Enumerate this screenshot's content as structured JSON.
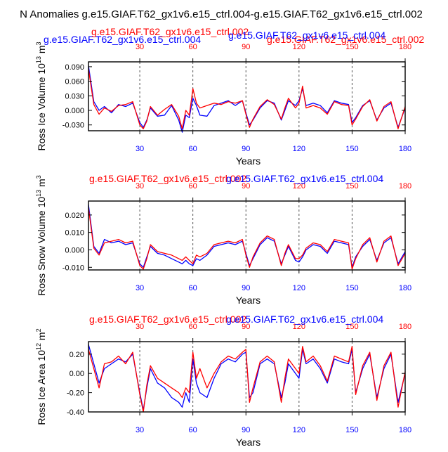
{
  "page_title": "N Anomalies g.e15.GIAF.T62_gx1v6.e15_ctrl.004-g.e15.GIAF.T62_gx1v6.e15_ctrl.002",
  "colors": {
    "blue": "#0000ff",
    "red": "#ff0000",
    "axis": "#000000",
    "grid": "#555555"
  },
  "chart_data": [
    {
      "type": "line",
      "ylabel_main": "Ross Ice Volume 10",
      "ylabel_exp": "13",
      "ylabel_unit": " m",
      "ylabel_unit_exp": "3",
      "xlabel": "Years",
      "legend_left": "g.e15.GIAF.T62_gx1v6.e15_ctrl.004",
      "legend_top": "g.e15.GIAF.T62_gx1v6.e15_ctrl.002",
      "legend_right": "g.e15.GIAF.T62_gx1v6.e15_ctrl.002",
      "xlim": [
        1,
        180
      ],
      "ylim": [
        -0.042,
        0.1
      ],
      "yticks": [
        -0.03,
        0,
        0.03,
        0.06,
        0.09
      ],
      "yticklabels": [
        "-0.030",
        "0.000",
        "0.030",
        "0.060",
        "0.090"
      ],
      "xticks": [
        30,
        60,
        90,
        120,
        150,
        180
      ],
      "xticklabels": [
        "30",
        "60",
        "90",
        "120",
        "150",
        "180"
      ],
      "series": [
        {
          "name": "g.e15.GIAF.T62_gx1v6.e15_ctrl.004",
          "color": "#0000ff",
          "x": [
            1,
            4,
            7,
            10,
            14,
            18,
            22,
            26,
            30,
            32,
            34,
            36,
            40,
            44,
            48,
            52,
            54,
            56,
            58,
            60,
            62,
            64,
            68,
            72,
            76,
            80,
            84,
            88,
            90,
            92,
            94,
            98,
            102,
            106,
            110,
            112,
            114,
            118,
            120,
            122,
            124,
            128,
            132,
            136,
            140,
            144,
            148,
            150,
            152,
            156,
            160,
            164,
            168,
            172,
            176,
            180
          ],
          "values": [
            0.092,
            0.018,
            0.0,
            0.008,
            -0.005,
            0.012,
            0.008,
            0.015,
            -0.025,
            -0.035,
            -0.02,
            0.005,
            -0.012,
            -0.01,
            0.01,
            -0.02,
            -0.045,
            -0.01,
            -0.015,
            0.025,
            0.01,
            -0.01,
            -0.012,
            0.01,
            0.015,
            0.02,
            0.01,
            0.02,
            -0.005,
            -0.03,
            -0.02,
            0.005,
            0.02,
            0.015,
            -0.02,
            0.0,
            0.02,
            0.01,
            0.02,
            0.045,
            0.01,
            0.015,
            0.01,
            -0.005,
            0.02,
            0.015,
            0.012,
            -0.025,
            -0.015,
            0.01,
            0.02,
            -0.02,
            0.005,
            0.015,
            -0.035,
            0.005
          ]
        },
        {
          "name": "g.e15.GIAF.T62_gx1v6.e15_ctrl.002",
          "color": "#ff0000",
          "x": [
            1,
            4,
            7,
            10,
            14,
            18,
            22,
            26,
            30,
            32,
            34,
            36,
            40,
            44,
            48,
            52,
            54,
            56,
            58,
            60,
            62,
            64,
            68,
            72,
            76,
            80,
            84,
            88,
            90,
            92,
            94,
            98,
            102,
            106,
            110,
            112,
            114,
            118,
            120,
            122,
            124,
            128,
            132,
            136,
            140,
            144,
            148,
            150,
            152,
            156,
            160,
            164,
            168,
            172,
            176,
            180
          ],
          "values": [
            0.085,
            0.012,
            -0.008,
            0.005,
            -0.002,
            0.01,
            0.012,
            0.018,
            -0.03,
            -0.038,
            -0.022,
            0.008,
            -0.01,
            0.002,
            0.012,
            -0.012,
            -0.038,
            0.0,
            -0.01,
            0.045,
            0.015,
            0.005,
            0.01,
            0.015,
            0.012,
            0.018,
            0.015,
            0.02,
            -0.008,
            -0.035,
            -0.018,
            0.008,
            0.022,
            0.012,
            -0.018,
            0.005,
            0.025,
            0.005,
            0.015,
            0.05,
            0.005,
            0.01,
            0.005,
            -0.008,
            0.018,
            0.012,
            0.01,
            -0.03,
            -0.018,
            0.008,
            0.022,
            -0.022,
            0.008,
            0.018,
            -0.038,
            0.008
          ]
        }
      ]
    },
    {
      "type": "line",
      "ylabel_main": "Ross Snow Volume 10",
      "ylabel_exp": "13",
      "ylabel_unit": " m",
      "ylabel_unit_exp": "3",
      "xlabel": "Years",
      "legend_left": "g.e15.GIAF.T62_gx1v6.e15_ctrl.002",
      "legend_right": "g.e15.GIAF.T62_gx1v6.e15_ctrl.004",
      "xlim": [
        1,
        180
      ],
      "ylim": [
        -0.0115,
        0.028
      ],
      "yticks": [
        -0.01,
        0,
        0.01,
        0.02
      ],
      "yticklabels": [
        "-0.010",
        "0.000",
        "0.010",
        "0.020"
      ],
      "xticks": [
        30,
        60,
        90,
        120,
        150,
        180
      ],
      "xticklabels": [
        "30",
        "60",
        "90",
        "120",
        "150",
        "180"
      ],
      "series": [
        {
          "name": "g.e15.GIAF.T62_gx1v6.e15_ctrl.004",
          "color": "#0000ff",
          "x": [
            1,
            4,
            7,
            10,
            14,
            18,
            22,
            26,
            30,
            32,
            34,
            36,
            40,
            44,
            48,
            52,
            54,
            56,
            58,
            60,
            62,
            64,
            68,
            72,
            76,
            80,
            84,
            88,
            90,
            92,
            94,
            98,
            102,
            106,
            110,
            112,
            114,
            118,
            120,
            122,
            124,
            128,
            132,
            136,
            140,
            144,
            148,
            150,
            152,
            156,
            160,
            164,
            168,
            172,
            176,
            180
          ],
          "values": [
            0.026,
            0.002,
            -0.002,
            0.006,
            0.004,
            0.005,
            0.003,
            0.004,
            -0.008,
            -0.01,
            -0.004,
            0.002,
            -0.002,
            -0.003,
            -0.005,
            -0.007,
            -0.008,
            -0.006,
            -0.008,
            -0.009,
            -0.005,
            -0.006,
            -0.003,
            0.002,
            0.003,
            0.004,
            0.003,
            0.005,
            -0.002,
            -0.009,
            -0.005,
            0.003,
            0.007,
            0.005,
            -0.008,
            -0.003,
            0.002,
            -0.006,
            -0.007,
            -0.004,
            0.0,
            0.003,
            0.002,
            -0.002,
            0.005,
            0.004,
            0.003,
            -0.01,
            -0.004,
            0.002,
            0.006,
            -0.006,
            0.004,
            0.007,
            -0.008,
            -0.001
          ]
        },
        {
          "name": "g.e15.GIAF.T62_gx1v6.e15_ctrl.002",
          "color": "#ff0000",
          "x": [
            1,
            4,
            7,
            10,
            14,
            18,
            22,
            26,
            30,
            32,
            34,
            36,
            40,
            44,
            48,
            52,
            54,
            56,
            58,
            60,
            62,
            64,
            68,
            72,
            76,
            80,
            84,
            88,
            90,
            92,
            94,
            98,
            102,
            106,
            110,
            112,
            114,
            118,
            120,
            122,
            124,
            128,
            132,
            136,
            140,
            144,
            148,
            150,
            152,
            156,
            160,
            164,
            168,
            172,
            176,
            180
          ],
          "values": [
            0.024,
            0.001,
            -0.003,
            0.004,
            0.005,
            0.006,
            0.004,
            0.005,
            -0.009,
            -0.011,
            -0.005,
            0.003,
            -0.001,
            -0.002,
            -0.003,
            -0.005,
            -0.006,
            -0.004,
            -0.006,
            -0.008,
            -0.003,
            -0.004,
            -0.002,
            0.003,
            0.004,
            0.005,
            0.004,
            0.006,
            -0.003,
            -0.01,
            -0.004,
            0.004,
            0.008,
            0.006,
            -0.009,
            -0.002,
            0.003,
            -0.005,
            -0.005,
            -0.003,
            0.001,
            0.004,
            0.003,
            -0.001,
            0.006,
            0.005,
            0.004,
            -0.011,
            -0.005,
            0.003,
            0.007,
            -0.007,
            0.005,
            0.008,
            -0.009,
            -0.002
          ]
        }
      ]
    },
    {
      "type": "line",
      "ylabel_main": "Ross Ice Area 10",
      "ylabel_exp": "12",
      "ylabel_unit": " m",
      "ylabel_unit_exp": "2",
      "xlabel": "Years",
      "legend_left": "g.e15.GIAF.T62_gx1v6.e15_ctrl.002",
      "legend_right": "g.e15.GIAF.T62_gx1v6.e15_ctrl.004",
      "xlim": [
        1,
        180
      ],
      "ylim": [
        -0.4,
        0.33
      ],
      "yticks": [
        -0.4,
        -0.2,
        0,
        0.2
      ],
      "yticklabels": [
        "-0.40",
        "-0.20",
        "0.00",
        "0.20"
      ],
      "xticks": [
        30,
        60,
        90,
        120,
        150,
        180
      ],
      "xticklabels": [
        "30",
        "60",
        "90",
        "120",
        "150",
        "180"
      ],
      "series": [
        {
          "name": "g.e15.GIAF.T62_gx1v6.e15_ctrl.004",
          "color": "#0000ff",
          "x": [
            1,
            4,
            7,
            10,
            14,
            18,
            22,
            26,
            30,
            32,
            34,
            36,
            40,
            44,
            48,
            52,
            54,
            56,
            58,
            60,
            62,
            64,
            68,
            72,
            76,
            80,
            84,
            88,
            90,
            92,
            94,
            98,
            102,
            106,
            110,
            112,
            114,
            118,
            120,
            122,
            124,
            128,
            132,
            136,
            140,
            144,
            148,
            150,
            152,
            156,
            160,
            164,
            168,
            172,
            176,
            180
          ],
          "values": [
            0.3,
            0.1,
            -0.1,
            0.05,
            0.1,
            0.15,
            0.12,
            0.2,
            -0.2,
            -0.38,
            -0.15,
            0.05,
            -0.1,
            -0.15,
            -0.25,
            -0.3,
            -0.35,
            -0.2,
            -0.3,
            0.15,
            -0.1,
            -0.2,
            -0.25,
            -0.05,
            0.1,
            0.15,
            0.12,
            0.2,
            0.22,
            -0.25,
            -0.2,
            0.1,
            0.15,
            0.1,
            -0.25,
            -0.1,
            0.1,
            0.0,
            -0.05,
            0.25,
            0.1,
            0.15,
            0.05,
            -0.1,
            0.15,
            0.12,
            0.1,
            0.25,
            -0.2,
            0.05,
            0.2,
            -0.25,
            0.05,
            0.2,
            -0.3,
            0.0
          ]
        },
        {
          "name": "g.e15.GIAF.T62_gx1v6.e15_ctrl.002",
          "color": "#ff0000",
          "x": [
            1,
            4,
            7,
            10,
            14,
            18,
            22,
            26,
            30,
            32,
            34,
            36,
            40,
            44,
            48,
            52,
            54,
            56,
            58,
            60,
            62,
            64,
            68,
            72,
            76,
            80,
            84,
            88,
            90,
            92,
            94,
            98,
            102,
            106,
            110,
            112,
            114,
            118,
            120,
            122,
            124,
            128,
            132,
            136,
            140,
            144,
            148,
            150,
            152,
            156,
            160,
            164,
            168,
            172,
            176,
            180
          ],
          "values": [
            0.25,
            0.05,
            -0.15,
            0.1,
            0.12,
            0.18,
            0.1,
            0.22,
            -0.22,
            -0.4,
            -0.12,
            0.08,
            -0.05,
            -0.1,
            -0.15,
            -0.2,
            -0.25,
            -0.15,
            -0.2,
            0.22,
            -0.05,
            0.05,
            -0.15,
            0.0,
            0.12,
            0.18,
            0.15,
            0.22,
            0.25,
            -0.3,
            -0.15,
            0.12,
            0.18,
            0.12,
            -0.3,
            -0.05,
            0.15,
            0.05,
            0.0,
            0.28,
            0.12,
            0.18,
            0.08,
            -0.08,
            0.18,
            0.15,
            0.12,
            0.28,
            -0.22,
            0.08,
            0.22,
            -0.28,
            0.08,
            0.22,
            -0.35,
            0.02
          ]
        }
      ]
    }
  ]
}
